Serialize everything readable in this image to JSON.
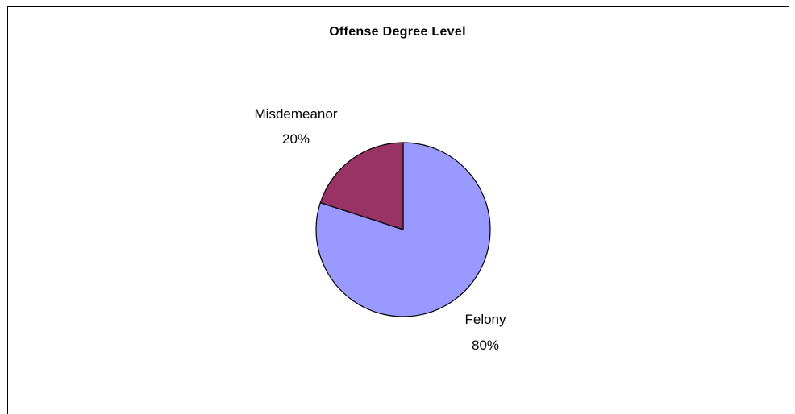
{
  "chart_data": {
    "type": "pie",
    "title": "Offense Degree Level",
    "slices": [
      {
        "label": "Felony",
        "value": 80,
        "percent_label": "80%",
        "color": "#9999FF"
      },
      {
        "label": "Misdemeanor",
        "value": 20,
        "percent_label": "20%",
        "color": "#993366"
      }
    ],
    "start": "top",
    "direction": "clockwise",
    "legend": "none",
    "slice_border_color": "#000000"
  }
}
